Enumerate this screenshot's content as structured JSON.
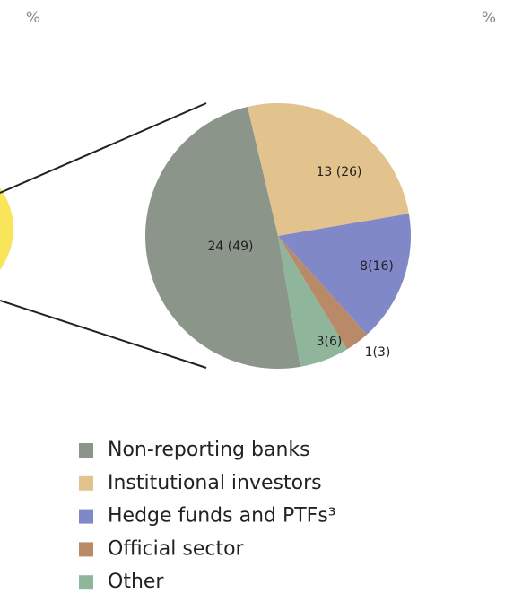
{
  "chart_data": {
    "type": "pie",
    "unit_left": "%",
    "unit_right": "%",
    "categories": [
      "Non-reporting banks",
      "Institutional investors",
      "Hedge funds and PTFs³",
      "Official sector",
      "Other"
    ],
    "values": [
      49,
      26,
      16,
      3,
      6
    ],
    "value_labels": [
      "24 (49)",
      "13 (26)",
      "8(16)",
      "1(3)",
      "3(6)"
    ],
    "colors": [
      "#8c9589",
      "#e2c38e",
      "#8088c8",
      "#b98a68",
      "#8fb59b"
    ]
  }
}
